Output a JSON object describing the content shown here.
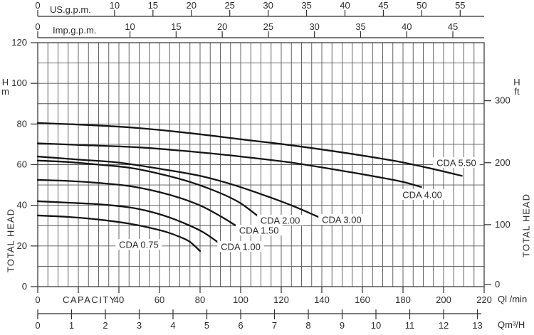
{
  "colors": {
    "curve": "#141414",
    "grid": "#545454",
    "axis": "#2f2f2f",
    "text": "#2d2d2d",
    "background": "#ffffff"
  },
  "labels": {
    "us_gpm": "US.g.p.m.",
    "imp_gpm": "Imp.g.p.m.",
    "capacity": "CAPACITY",
    "q_lmin": "Ql /min",
    "q_m3h": "Qm³/H",
    "h_left_top": "H",
    "h_left_bottom": "m",
    "h_right_top": "H",
    "h_right_bottom": "ft",
    "total_head_left": "TOTAL HEAD",
    "total_head_right": "TOTAL HEAD"
  },
  "chart_data": {
    "type": "line",
    "title": "",
    "xlabel": "CAPACITY",
    "ylabel_left": "TOTAL HEAD (H m)",
    "ylabel_right": "TOTAL HEAD (H ft)",
    "x_units": [
      "US.g.p.m.",
      "Imp.g.p.m.",
      "Ql /min",
      "Qm³/H"
    ],
    "xlim_lmin": [
      0,
      220
    ],
    "ylim_m": [
      0,
      120
    ],
    "grid": true,
    "grid_step_lmin": 5,
    "grid_step_m": 10,
    "axes": {
      "us_gpm": {
        "label": "US.g.p.m.",
        "ticks": [
          0,
          10,
          15,
          20,
          25,
          30,
          35,
          40,
          45,
          50,
          55
        ],
        "lmin_per_unit": 3.785
      },
      "imp_gpm": {
        "label": "Imp.g.p.m.",
        "ticks": [
          0,
          10,
          15,
          20,
          25,
          30,
          35,
          40,
          45
        ],
        "lmin_per_unit": 4.546
      },
      "lmin": {
        "label": "Ql /min",
        "word": "CAPACITY",
        "labeled_ticks": [
          0,
          40,
          60,
          80,
          100,
          120,
          140,
          160,
          180,
          200,
          220
        ],
        "tick_step": 20
      },
      "m3h": {
        "label": "Qm³/H",
        "ticks": [
          0,
          1,
          2,
          3,
          4,
          5,
          6,
          7,
          8,
          9,
          10,
          11,
          12,
          13
        ],
        "lmin_per_unit": 16.667
      },
      "head_m": {
        "unit": "H m",
        "labeled_ticks": [
          0,
          20,
          40,
          60,
          80,
          100,
          120
        ]
      },
      "head_ft": {
        "unit": "H ft",
        "labeled_ticks": [
          0,
          100,
          200,
          300
        ],
        "m_per_unit": 0.3048
      }
    },
    "series": [
      {
        "name": "CDA 0.75",
        "label": "CDA  0.75",
        "label_q": 49.8,
        "label_h": 20.6,
        "points": [
          [
            0,
            35
          ],
          [
            15,
            34.3
          ],
          [
            30,
            33
          ],
          [
            45,
            31
          ],
          [
            55,
            29
          ],
          [
            63,
            27
          ],
          [
            70,
            24.5
          ],
          [
            75,
            22
          ],
          [
            80,
            17.5
          ]
        ]
      },
      {
        "name": "CDA 1.00",
        "label": "CDA  1.00",
        "label_q": 100,
        "label_h": 19.6,
        "points": [
          [
            0,
            42
          ],
          [
            15,
            41.3
          ],
          [
            30,
            40.5
          ],
          [
            45,
            39
          ],
          [
            55,
            37
          ],
          [
            65,
            34
          ],
          [
            75,
            30
          ],
          [
            82,
            26.5
          ],
          [
            90,
            21
          ]
        ]
      },
      {
        "name": "CDA 1.50",
        "label": "CDA  1.50",
        "label_q": 109,
        "label_h": 27.6,
        "points": [
          [
            0,
            52.5
          ],
          [
            15,
            52
          ],
          [
            30,
            51
          ],
          [
            45,
            49.5
          ],
          [
            60,
            46.5
          ],
          [
            72,
            43
          ],
          [
            82,
            39
          ],
          [
            92,
            33.5
          ],
          [
            100,
            28.5
          ]
        ]
      },
      {
        "name": "CDA 2.00",
        "label": "CDA  2.00",
        "label_q": 119.5,
        "label_h": 32.5,
        "points": [
          [
            0,
            62
          ],
          [
            15,
            61.3
          ],
          [
            30,
            60
          ],
          [
            45,
            58.5
          ],
          [
            60,
            55.5
          ],
          [
            75,
            51.5
          ],
          [
            90,
            46
          ],
          [
            100,
            41
          ],
          [
            110,
            33.5
          ]
        ]
      },
      {
        "name": "CDA 3.00",
        "label": "CDA  3.00",
        "label_q": 149.8,
        "label_h": 32.9,
        "points": [
          [
            0,
            64
          ],
          [
            20,
            62.5
          ],
          [
            40,
            61
          ],
          [
            60,
            58
          ],
          [
            80,
            54.5
          ],
          [
            95,
            50.5
          ],
          [
            110,
            45.5
          ],
          [
            125,
            40
          ],
          [
            140,
            33.5
          ]
        ]
      },
      {
        "name": "CDA 4.00",
        "label": "CDA  4.00",
        "label_q": 189.5,
        "label_h": 45.1,
        "points": [
          [
            0,
            70.5
          ],
          [
            25,
            69.5
          ],
          [
            50,
            68.5
          ],
          [
            75,
            66.5
          ],
          [
            100,
            64
          ],
          [
            125,
            61
          ],
          [
            150,
            57
          ],
          [
            170,
            53.5
          ],
          [
            180,
            51.5
          ],
          [
            189,
            49
          ]
        ]
      },
      {
        "name": "CDA 5.50",
        "label": "CDA  5.50",
        "label_q": 206.3,
        "label_h": 60.9,
        "points": [
          [
            0,
            80.5
          ],
          [
            25,
            79.5
          ],
          [
            50,
            78
          ],
          [
            75,
            75.5
          ],
          [
            100,
            72.5
          ],
          [
            125,
            69.5
          ],
          [
            150,
            66
          ],
          [
            175,
            62
          ],
          [
            192,
            58.5
          ],
          [
            209,
            54.5
          ]
        ]
      }
    ]
  }
}
